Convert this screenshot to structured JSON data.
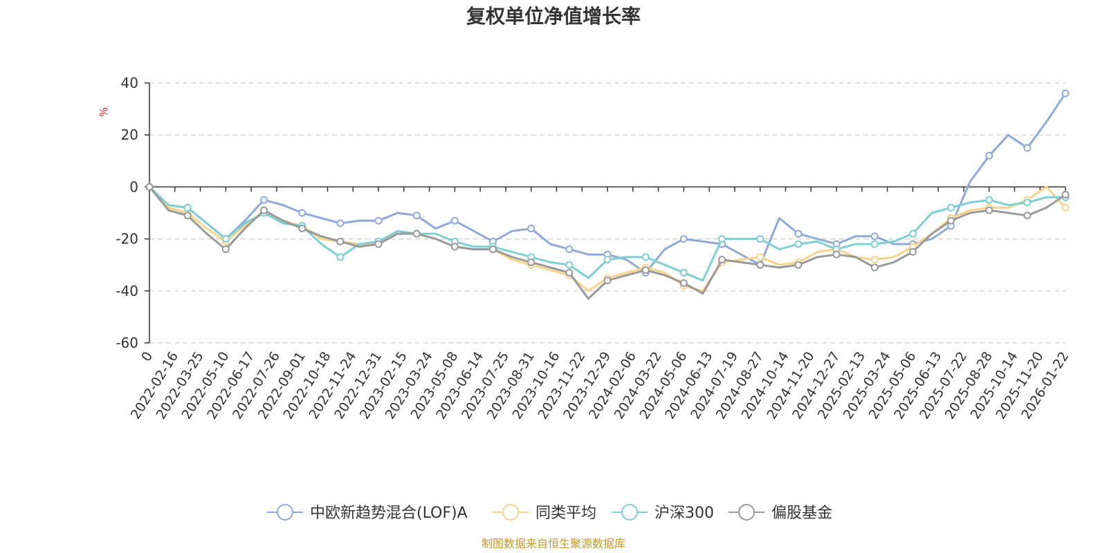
{
  "chart_data": {
    "type": "line",
    "title": "复权单位净值增长率",
    "y_unit": "%",
    "ylim": [
      -60,
      40
    ],
    "yticks": [
      40,
      20,
      0,
      -20,
      -40,
      -60
    ],
    "grid": true,
    "legend_position": "bottom-center",
    "x_tick_labels": [
      "0",
      "2022-02-16",
      "2022-03-25",
      "2022-05-10",
      "2022-06-17",
      "2022-07-26",
      "2022-09-01",
      "2022-10-18",
      "2022-11-24",
      "2022-12-31",
      "2023-02-15",
      "2023-03-24",
      "2023-05-08",
      "2023-06-14",
      "2023-07-25",
      "2023-08-31",
      "2023-10-16",
      "2023-11-22",
      "2023-12-29",
      "2024-02-06",
      "2024-03-22",
      "2024-05-06",
      "2024-06-13",
      "2024-07-19",
      "2024-08-27",
      "2024-10-14",
      "2024-11-20",
      "2024-12-27",
      "2025-02-13",
      "2025-03-24",
      "2025-05-06",
      "2025-06-13",
      "2025-07-22",
      "2025-08-28",
      "2025-10-14",
      "2025-11-20",
      "2026-01-22"
    ],
    "series": [
      {
        "name": "中欧新趋势混合(LOF)A",
        "color": "#8eaadb",
        "values": [
          0,
          -7,
          -8,
          -14,
          -20,
          -13,
          -5,
          -7,
          -10,
          -12,
          -14,
          -13,
          -13,
          -10,
          -11,
          -16,
          -13,
          -17,
          -21,
          -17,
          -16,
          -22,
          -24,
          -26,
          -26,
          -28,
          -33,
          -24,
          -20,
          -21,
          -22,
          -26,
          -30,
          -12,
          -18,
          -20,
          -22,
          -19,
          -19,
          -22,
          -22,
          -20,
          -15,
          2,
          12,
          20,
          15,
          25,
          36
        ]
      },
      {
        "name": "同类平均",
        "color": "#fad38a",
        "values": [
          0,
          -8,
          -10,
          -16,
          -21,
          -15,
          -10,
          -13,
          -15,
          -20,
          -21,
          -22,
          -22,
          -17,
          -18,
          -20,
          -23,
          -24,
          -24,
          -28,
          -30,
          -32,
          -34,
          -40,
          -35,
          -33,
          -31,
          -33,
          -38,
          -40,
          -29,
          -28,
          -27,
          -30,
          -29,
          -25,
          -24,
          -27,
          -28,
          -27,
          -23,
          -18,
          -12,
          -9,
          -8,
          -8,
          -5,
          0,
          -8
        ]
      },
      {
        "name": "沪深300",
        "color": "#7ccfd4",
        "values": [
          0,
          -7,
          -8,
          -14,
          -20,
          -14,
          -10,
          -14,
          -15,
          -22,
          -27,
          -22,
          -21,
          -17,
          -18,
          -18,
          -21,
          -23,
          -23,
          -25,
          -27,
          -29,
          -30,
          -35,
          -28,
          -27,
          -27,
          -30,
          -33,
          -36,
          -20,
          -20,
          -20,
          -24,
          -22,
          -21,
          -24,
          -22,
          -22,
          -21,
          -18,
          -10,
          -8,
          -6,
          -5,
          -7,
          -6,
          -4,
          -4
        ]
      },
      {
        "name": "偏股基金",
        "color": "#999999",
        "values": [
          0,
          -9,
          -11,
          -18,
          -24,
          -16,
          -9,
          -13,
          -16,
          -19,
          -21,
          -23,
          -22,
          -18,
          -18,
          -20,
          -23,
          -24,
          -24,
          -27,
          -29,
          -31,
          -33,
          -43,
          -36,
          -34,
          -32,
          -34,
          -37,
          -41,
          -28,
          -29,
          -30,
          -31,
          -30,
          -27,
          -26,
          -27,
          -31,
          -29,
          -25,
          -18,
          -13,
          -10,
          -9,
          -10,
          -11,
          -8,
          -3
        ]
      }
    ]
  },
  "source_note": "制图数据来自恒生聚源数据库"
}
